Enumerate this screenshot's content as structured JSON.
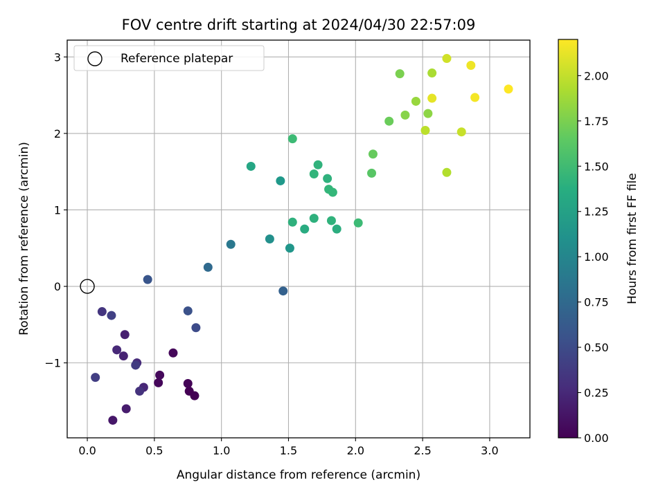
{
  "chart_data": {
    "type": "scatter",
    "title": "FOV centre drift starting at 2024/04/30 22:57:09",
    "xlabel": "Angular distance from reference (arcmin)",
    "ylabel": "Rotation from reference (arcmin)",
    "xlim": [
      -0.15,
      3.3
    ],
    "ylim": [
      -1.98,
      3.22
    ],
    "xticks": [
      0.0,
      0.5,
      1.0,
      1.5,
      2.0,
      2.5,
      3.0
    ],
    "xtick_labels": [
      "0.0",
      "0.5",
      "1.0",
      "1.5",
      "2.0",
      "2.5",
      "3.0"
    ],
    "yticks": [
      -1,
      0,
      1,
      2,
      3
    ],
    "ytick_labels": [
      "−1",
      "0",
      "1",
      "2",
      "3"
    ],
    "grid": true,
    "legend": {
      "position": "top-left",
      "entries": [
        "Reference platepar"
      ]
    },
    "reference_point": {
      "name": "Reference platepar",
      "x": 0,
      "y": 0
    },
    "colorbar": {
      "label": "Hours from first FF file",
      "colormap": "viridis",
      "range": [
        0,
        2.2
      ],
      "ticks": [
        0.0,
        0.25,
        0.5,
        0.75,
        1.0,
        1.25,
        1.5,
        1.75,
        2.0
      ],
      "tick_labels": [
        "0.00",
        "0.25",
        "0.50",
        "0.75",
        "1.00",
        "1.25",
        "1.50",
        "1.75",
        "2.00"
      ]
    },
    "points": [
      {
        "x": 0.76,
        "y": -1.37,
        "c": 0.0
      },
      {
        "x": 0.8,
        "y": -1.43,
        "c": 0.0
      },
      {
        "x": 0.75,
        "y": -1.27,
        "c": 0.02
      },
      {
        "x": 0.64,
        "y": -0.87,
        "c": 0.04
      },
      {
        "x": 0.53,
        "y": -1.26,
        "c": 0.04
      },
      {
        "x": 0.54,
        "y": -1.16,
        "c": 0.05
      },
      {
        "x": 0.19,
        "y": -1.75,
        "c": 0.14
      },
      {
        "x": 0.29,
        "y": -1.6,
        "c": 0.17
      },
      {
        "x": 0.28,
        "y": -0.63,
        "c": 0.19
      },
      {
        "x": 0.27,
        "y": -0.91,
        "c": 0.21
      },
      {
        "x": 0.42,
        "y": -1.32,
        "c": 0.24
      },
      {
        "x": 0.22,
        "y": -0.83,
        "c": 0.25
      },
      {
        "x": 0.37,
        "y": -1.0,
        "c": 0.27
      },
      {
        "x": 0.39,
        "y": -1.37,
        "c": 0.32
      },
      {
        "x": 0.11,
        "y": -0.33,
        "c": 0.34
      },
      {
        "x": 0.36,
        "y": -1.03,
        "c": 0.38
      },
      {
        "x": 0.06,
        "y": -1.19,
        "c": 0.4
      },
      {
        "x": 0.18,
        "y": -0.38,
        "c": 0.42
      },
      {
        "x": 0.81,
        "y": -0.54,
        "c": 0.5
      },
      {
        "x": 0.75,
        "y": -0.32,
        "c": 0.55
      },
      {
        "x": 0.45,
        "y": 0.09,
        "c": 0.58
      },
      {
        "x": 1.46,
        "y": -0.06,
        "c": 0.68
      },
      {
        "x": 0.9,
        "y": 0.25,
        "c": 0.75
      },
      {
        "x": 1.07,
        "y": 0.55,
        "c": 0.88
      },
      {
        "x": 1.36,
        "y": 0.62,
        "c": 1.1
      },
      {
        "x": 1.51,
        "y": 0.5,
        "c": 1.15
      },
      {
        "x": 1.44,
        "y": 1.38,
        "c": 1.18
      },
      {
        "x": 1.22,
        "y": 1.57,
        "c": 1.3
      },
      {
        "x": 1.62,
        "y": 0.75,
        "c": 1.35
      },
      {
        "x": 1.86,
        "y": 0.75,
        "c": 1.37
      },
      {
        "x": 1.53,
        "y": 0.84,
        "c": 1.4
      },
      {
        "x": 1.69,
        "y": 0.89,
        "c": 1.4
      },
      {
        "x": 1.82,
        "y": 0.86,
        "c": 1.42
      },
      {
        "x": 1.79,
        "y": 1.41,
        "c": 1.41
      },
      {
        "x": 1.72,
        "y": 1.59,
        "c": 1.42
      },
      {
        "x": 1.69,
        "y": 1.47,
        "c": 1.44
      },
      {
        "x": 1.8,
        "y": 1.27,
        "c": 1.45
      },
      {
        "x": 1.83,
        "y": 1.23,
        "c": 1.46
      },
      {
        "x": 2.02,
        "y": 0.83,
        "c": 1.5
      },
      {
        "x": 1.53,
        "y": 1.93,
        "c": 1.5
      },
      {
        "x": 2.12,
        "y": 1.48,
        "c": 1.62
      },
      {
        "x": 2.13,
        "y": 1.73,
        "c": 1.68
      },
      {
        "x": 2.25,
        "y": 2.16,
        "c": 1.7
      },
      {
        "x": 2.33,
        "y": 2.78,
        "c": 1.76
      },
      {
        "x": 2.37,
        "y": 2.24,
        "c": 1.8
      },
      {
        "x": 2.54,
        "y": 2.26,
        "c": 1.82
      },
      {
        "x": 2.45,
        "y": 2.42,
        "c": 1.86
      },
      {
        "x": 2.57,
        "y": 2.79,
        "c": 1.92
      },
      {
        "x": 2.68,
        "y": 1.49,
        "c": 1.95
      },
      {
        "x": 2.52,
        "y": 2.04,
        "c": 1.98
      },
      {
        "x": 2.79,
        "y": 2.02,
        "c": 2.02
      },
      {
        "x": 2.68,
        "y": 2.98,
        "c": 2.05
      },
      {
        "x": 2.57,
        "y": 2.46,
        "c": 2.12
      },
      {
        "x": 2.86,
        "y": 2.89,
        "c": 2.15
      },
      {
        "x": 2.89,
        "y": 2.47,
        "c": 2.17
      },
      {
        "x": 3.14,
        "y": 2.58,
        "c": 2.2
      }
    ]
  }
}
